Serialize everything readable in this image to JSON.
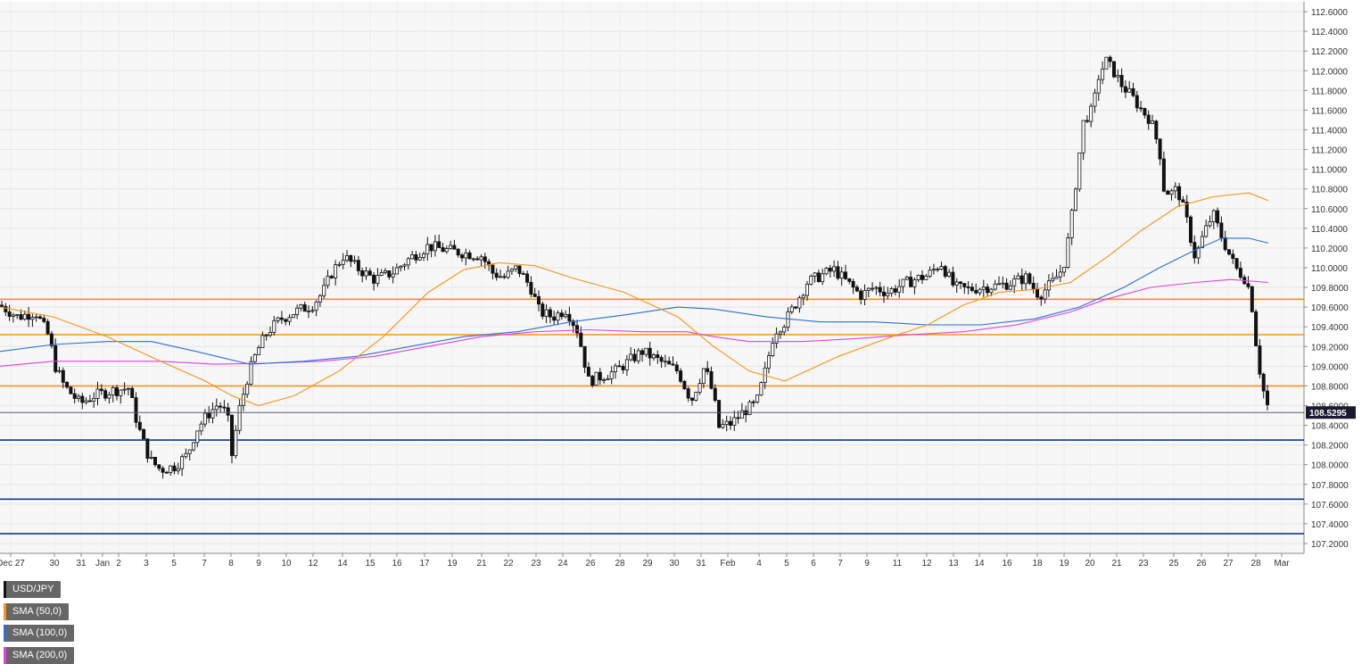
{
  "chart_data": {
    "type": "candlestick",
    "symbol": "USD/JPY",
    "y_range": [
      107.1,
      112.7
    ],
    "y_ticks": [
      "107.2000",
      "107.4000",
      "107.6000",
      "107.8000",
      "108.0000",
      "108.2000",
      "108.4000",
      "108.6000",
      "108.8000",
      "109.0000",
      "109.2000",
      "109.4000",
      "109.6000",
      "109.8000",
      "110.0000",
      "110.2000",
      "110.4000",
      "110.6000",
      "110.8000",
      "111.0000",
      "111.2000",
      "111.4000",
      "111.6000",
      "111.8000",
      "112.0000",
      "112.2000",
      "112.4000",
      "112.6000"
    ],
    "x_labels": [
      "Dec 27",
      "30",
      "31",
      "Jan",
      "2",
      "3",
      "5",
      "7",
      "8",
      "9",
      "10",
      "12",
      "14",
      "15",
      "16",
      "17",
      "19",
      "21",
      "22",
      "23",
      "24",
      "26",
      "28",
      "29",
      "30",
      "31",
      "Feb",
      "4",
      "5",
      "6",
      "7",
      "9",
      "11",
      "12",
      "13",
      "14",
      "16",
      "18",
      "19",
      "20",
      "21",
      "23",
      "25",
      "26",
      "27",
      "28",
      "Mar"
    ],
    "last_price": "108.5295",
    "legend": [
      {
        "label": "USD/JPY",
        "color": "#111111"
      },
      {
        "label": "SMA (50,0)",
        "color": "#f7931a"
      },
      {
        "label": "SMA (100,0)",
        "color": "#2e6fd1"
      },
      {
        "label": "SMA (200,0)",
        "color": "#e040e0"
      }
    ],
    "resistance_levels": [
      109.68,
      109.32,
      108.8
    ],
    "support_levels": [
      108.25,
      107.65,
      107.3
    ],
    "level_colors": {
      "resistance": "#f7931a",
      "support": "#0d3c8c",
      "price_line": "#555e6e"
    },
    "price_path": [
      [
        0,
        109.62
      ],
      [
        20,
        109.5
      ],
      [
        40,
        109.55
      ],
      [
        55,
        109.3
      ],
      [
        62,
        109.0
      ],
      [
        72,
        108.8
      ],
      [
        90,
        108.62
      ],
      [
        105,
        108.7
      ],
      [
        125,
        108.75
      ],
      [
        145,
        108.78
      ],
      [
        150,
        108.55
      ],
      [
        158,
        108.3
      ],
      [
        168,
        108.05
      ],
      [
        180,
        107.95
      ],
      [
        195,
        107.98
      ],
      [
        210,
        108.1
      ],
      [
        220,
        108.35
      ],
      [
        232,
        108.5
      ],
      [
        245,
        108.62
      ],
      [
        255,
        108.5
      ],
      [
        260,
        108.1
      ],
      [
        268,
        108.55
      ],
      [
        278,
        108.9
      ],
      [
        288,
        109.15
      ],
      [
        300,
        109.35
      ],
      [
        315,
        109.48
      ],
      [
        330,
        109.55
      ],
      [
        350,
        109.62
      ],
      [
        362,
        109.75
      ],
      [
        372,
        109.95
      ],
      [
        385,
        110.12
      ],
      [
        400,
        110.0
      ],
      [
        420,
        109.88
      ],
      [
        440,
        109.95
      ],
      [
        460,
        110.1
      ],
      [
        480,
        110.22
      ],
      [
        500,
        110.18
      ],
      [
        520,
        110.15
      ],
      [
        540,
        110.12
      ],
      [
        552,
        109.95
      ],
      [
        565,
        109.9
      ],
      [
        580,
        110.0
      ],
      [
        595,
        109.8
      ],
      [
        605,
        109.55
      ],
      [
        620,
        109.5
      ],
      [
        635,
        109.58
      ],
      [
        648,
        109.35
      ],
      [
        660,
        108.85
      ],
      [
        675,
        108.9
      ],
      [
        690,
        108.95
      ],
      [
        705,
        109.05
      ],
      [
        720,
        109.15
      ],
      [
        740,
        109.05
      ],
      [
        760,
        108.95
      ],
      [
        775,
        108.65
      ],
      [
        790,
        109.0
      ],
      [
        800,
        108.7
      ],
      [
        806,
        108.38
      ],
      [
        820,
        108.42
      ],
      [
        835,
        108.55
      ],
      [
        848,
        108.62
      ],
      [
        858,
        108.95
      ],
      [
        868,
        109.35
      ],
      [
        880,
        109.45
      ],
      [
        893,
        109.65
      ],
      [
        905,
        109.85
      ],
      [
        920,
        109.92
      ],
      [
        935,
        109.98
      ],
      [
        950,
        109.85
      ],
      [
        965,
        109.72
      ],
      [
        980,
        109.8
      ],
      [
        995,
        109.75
      ],
      [
        1010,
        109.82
      ],
      [
        1025,
        109.88
      ],
      [
        1040,
        109.92
      ],
      [
        1055,
        110.05
      ],
      [
        1070,
        109.8
      ],
      [
        1085,
        109.78
      ],
      [
        1100,
        109.8
      ],
      [
        1120,
        109.82
      ],
      [
        1135,
        109.85
      ],
      [
        1150,
        109.9
      ],
      [
        1165,
        109.72
      ],
      [
        1180,
        109.85
      ],
      [
        1192,
        110.0
      ],
      [
        1200,
        110.4
      ],
      [
        1208,
        111.0
      ],
      [
        1215,
        111.5
      ],
      [
        1225,
        111.6
      ],
      [
        1232,
        111.95
      ],
      [
        1240,
        112.1
      ],
      [
        1248,
        112.0
      ],
      [
        1258,
        111.85
      ],
      [
        1268,
        111.75
      ],
      [
        1280,
        111.6
      ],
      [
        1290,
        111.5
      ],
      [
        1300,
        111.2
      ],
      [
        1305,
        110.8
      ],
      [
        1312,
        110.75
      ],
      [
        1320,
        110.8
      ],
      [
        1330,
        110.5
      ],
      [
        1340,
        110.1
      ],
      [
        1350,
        110.35
      ],
      [
        1360,
        110.55
      ],
      [
        1368,
        110.35
      ],
      [
        1375,
        110.2
      ],
      [
        1385,
        110.0
      ],
      [
        1395,
        109.9
      ],
      [
        1402,
        109.75
      ],
      [
        1408,
        109.25
      ],
      [
        1414,
        108.85
      ],
      [
        1420,
        108.62
      ],
      [
        1424,
        108.53
      ]
    ],
    "sma50": [
      [
        0,
        109.6
      ],
      [
        60,
        109.5
      ],
      [
        120,
        109.3
      ],
      [
        180,
        109.05
      ],
      [
        230,
        108.85
      ],
      [
        260,
        108.7
      ],
      [
        290,
        108.6
      ],
      [
        330,
        108.7
      ],
      [
        380,
        108.95
      ],
      [
        430,
        109.3
      ],
      [
        480,
        109.75
      ],
      [
        520,
        109.98
      ],
      [
        560,
        110.05
      ],
      [
        600,
        110.02
      ],
      [
        640,
        109.9
      ],
      [
        700,
        109.75
      ],
      [
        760,
        109.5
      ],
      [
        800,
        109.2
      ],
      [
        840,
        108.95
      ],
      [
        880,
        108.85
      ],
      [
        940,
        109.1
      ],
      [
        1000,
        109.3
      ],
      [
        1040,
        109.42
      ],
      [
        1080,
        109.62
      ],
      [
        1120,
        109.75
      ],
      [
        1160,
        109.78
      ],
      [
        1200,
        109.85
      ],
      [
        1240,
        110.1
      ],
      [
        1280,
        110.38
      ],
      [
        1320,
        110.62
      ],
      [
        1360,
        110.72
      ],
      [
        1400,
        110.76
      ],
      [
        1422,
        110.68
      ]
    ],
    "sma100": [
      [
        0,
        109.15
      ],
      [
        60,
        109.22
      ],
      [
        120,
        109.25
      ],
      [
        170,
        109.25
      ],
      [
        220,
        109.15
      ],
      [
        280,
        109.02
      ],
      [
        340,
        109.05
      ],
      [
        400,
        109.1
      ],
      [
        460,
        109.2
      ],
      [
        520,
        109.3
      ],
      [
        580,
        109.35
      ],
      [
        640,
        109.45
      ],
      [
        700,
        109.52
      ],
      [
        760,
        109.6
      ],
      [
        800,
        109.58
      ],
      [
        860,
        109.5
      ],
      [
        920,
        109.45
      ],
      [
        980,
        109.45
      ],
      [
        1040,
        109.42
      ],
      [
        1100,
        109.42
      ],
      [
        1160,
        109.48
      ],
      [
        1210,
        109.6
      ],
      [
        1260,
        109.8
      ],
      [
        1300,
        110.0
      ],
      [
        1340,
        110.18
      ],
      [
        1370,
        110.3
      ],
      [
        1400,
        110.3
      ],
      [
        1422,
        110.25
      ]
    ],
    "sma200": [
      [
        0,
        109.0
      ],
      [
        60,
        109.05
      ],
      [
        120,
        109.05
      ],
      [
        180,
        109.05
      ],
      [
        240,
        109.02
      ],
      [
        300,
        109.03
      ],
      [
        360,
        109.05
      ],
      [
        420,
        109.1
      ],
      [
        480,
        109.2
      ],
      [
        540,
        109.3
      ],
      [
        600,
        109.35
      ],
      [
        660,
        109.37
      ],
      [
        720,
        109.35
      ],
      [
        770,
        109.35
      ],
      [
        800,
        109.3
      ],
      [
        840,
        109.25
      ],
      [
        900,
        109.25
      ],
      [
        960,
        109.28
      ],
      [
        1020,
        109.32
      ],
      [
        1080,
        109.35
      ],
      [
        1140,
        109.42
      ],
      [
        1200,
        109.55
      ],
      [
        1240,
        109.68
      ],
      [
        1290,
        109.8
      ],
      [
        1340,
        109.85
      ],
      [
        1380,
        109.88
      ],
      [
        1422,
        109.85
      ]
    ]
  }
}
